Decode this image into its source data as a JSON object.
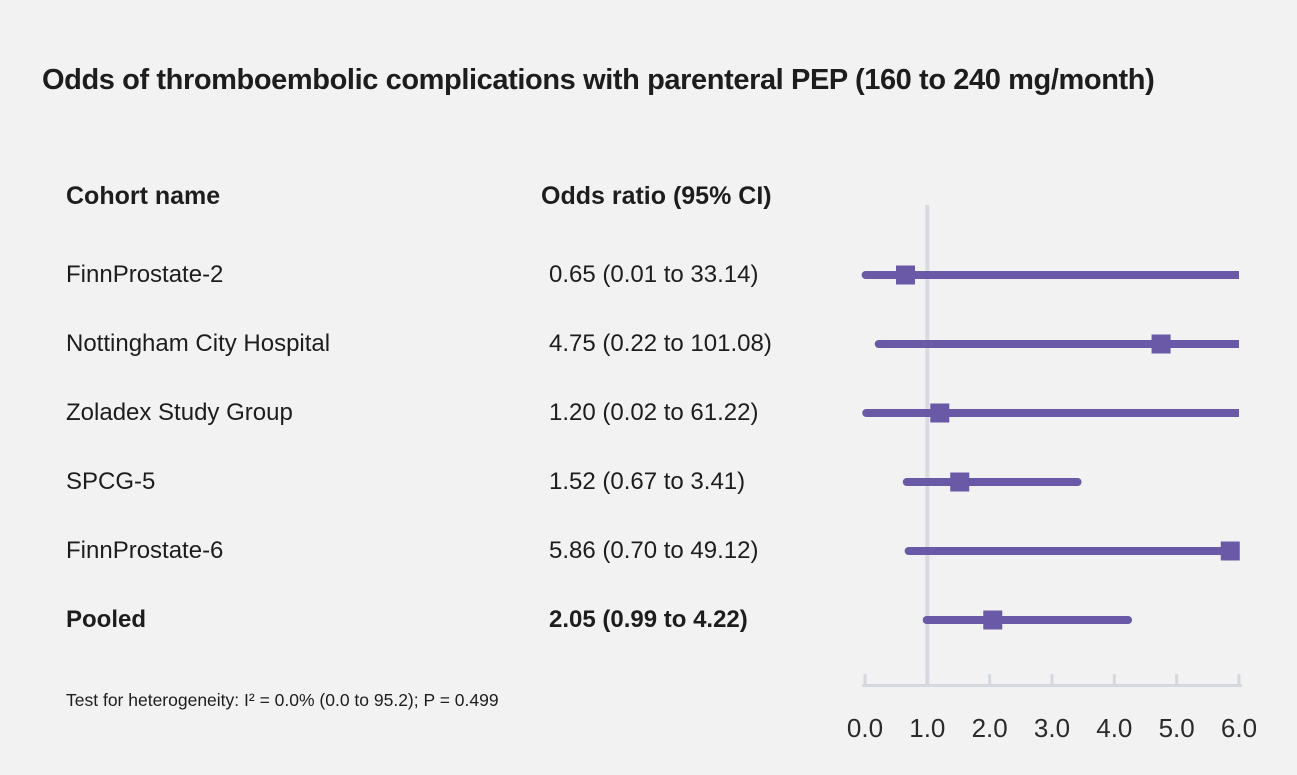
{
  "title": "Odds of thromboembolic complications with parenteral PEP (160 to 240 mg/month)",
  "columns": {
    "cohort": "Cohort name",
    "odds_ratio": "Odds ratio (95% CI)"
  },
  "footnote": "Test for heterogeneity: I² = 0.0% (0.0 to 95.2); P = 0.499",
  "chart_data": {
    "type": "forest",
    "title": "Odds of thromboembolic complications with parenteral PEP (160 to 240 mg/month)",
    "xlabel": "Odds ratio",
    "xlim": [
      0.0,
      6.0
    ],
    "ticks": [
      0,
      1,
      2,
      3,
      4,
      5,
      6
    ],
    "tick_labels": [
      "0.0",
      "1.0",
      "2.0",
      "3.0",
      "4.0",
      "5.0",
      "6.0"
    ],
    "reference_line": 1.0,
    "grid": "off",
    "rows": [
      {
        "label": "FinnProstate-2",
        "value_text": "0.65 (0.01 to 33.14)",
        "or": 0.65,
        "ci_low": 0.01,
        "ci_high": 33.14,
        "pooled": false
      },
      {
        "label": "Nottingham City Hospital",
        "value_text": "4.75 (0.22 to 101.08)",
        "or": 4.75,
        "ci_low": 0.22,
        "ci_high": 101.08,
        "pooled": false
      },
      {
        "label": "Zoladex Study Group",
        "value_text": "1.20 (0.02 to 61.22)",
        "or": 1.2,
        "ci_low": 0.02,
        "ci_high": 61.22,
        "pooled": false
      },
      {
        "label": "SPCG-5",
        "value_text": "1.52 (0.67 to 3.41)",
        "or": 1.52,
        "ci_low": 0.67,
        "ci_high": 3.41,
        "pooled": false
      },
      {
        "label": "FinnProstate-6",
        "value_text": "5.86 (0.70 to 49.12)",
        "or": 5.86,
        "ci_low": 0.7,
        "ci_high": 49.12,
        "pooled": false
      },
      {
        "label": "Pooled",
        "value_text": "2.05 (0.99 to 4.22)",
        "or": 2.05,
        "ci_low": 0.99,
        "ci_high": 4.22,
        "pooled": true
      }
    ],
    "colors": {
      "marker": "#6a59a6",
      "reference_line": "#d8dae2",
      "axis": "#d4d8df",
      "background": "#f2f2f2",
      "text": "#1d1d1d",
      "tick_label_text": "#2b2b2b"
    }
  }
}
